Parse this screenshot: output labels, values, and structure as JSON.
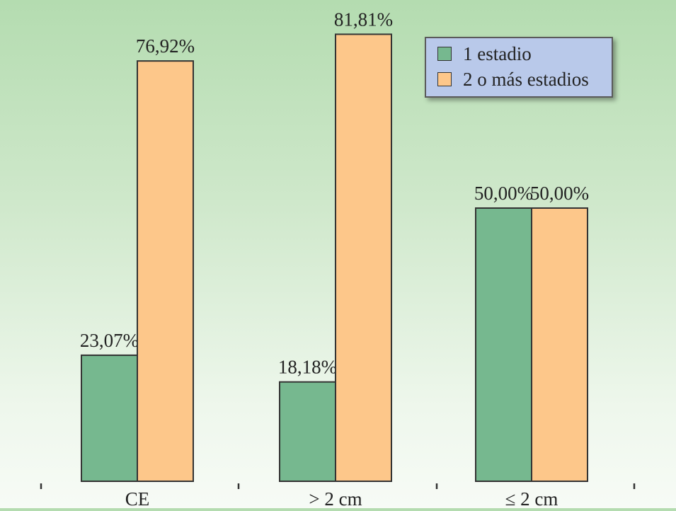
{
  "chart_data": {
    "type": "bar",
    "categories": [
      "CE",
      "> 2 cm",
      "≤ 2 cm"
    ],
    "series": [
      {
        "name": "1 estadio",
        "values": [
          23.07,
          18.18,
          50.0
        ],
        "labels": [
          "23,07%",
          "18,18%",
          "50,00%"
        ],
        "color": "#76b88f"
      },
      {
        "name": "2 o más estadios",
        "values": [
          76.92,
          81.81,
          50.0
        ],
        "labels": [
          "76,92%",
          "81,81%",
          "50,00%"
        ],
        "color": "#fdc78a"
      }
    ],
    "ylim": [
      0,
      100
    ],
    "grid": false,
    "legend_position": "top-right",
    "title": "",
    "xlabel": "",
    "ylabel": ""
  }
}
